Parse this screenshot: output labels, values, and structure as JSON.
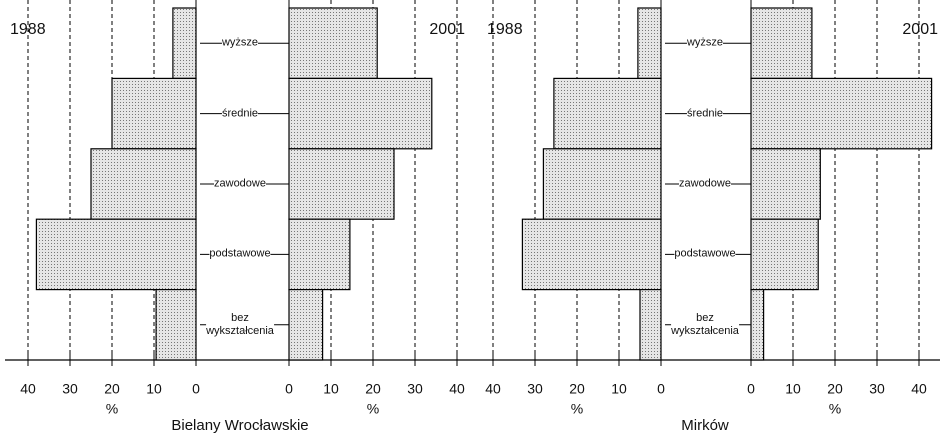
{
  "chart_data": [
    {
      "type": "bar",
      "orientation": "horizontal",
      "title": "Bielany Wrocławskie",
      "categories": [
        "wyższe",
        "średnie",
        "zawodowe",
        "podstawowe",
        "bez\nwykształcenia"
      ],
      "series": [
        {
          "name": "1988",
          "side": "left",
          "color": "#d9d9d9",
          "values": [
            5.5,
            20,
            25,
            38,
            9.5
          ]
        },
        {
          "name": "2001",
          "side": "right",
          "color": "#d9d9d9",
          "values": [
            21,
            34,
            25,
            14.5,
            8
          ]
        }
      ],
      "xlim": [
        0,
        40
      ],
      "xticks": [
        0,
        10,
        20,
        30,
        40
      ],
      "xlabel": "%",
      "grid": true
    },
    {
      "type": "bar",
      "orientation": "horizontal",
      "title": "Mirków",
      "categories": [
        "wyższe",
        "średnie",
        "zawodowe",
        "podstawowe",
        "bez\nwykształcenia"
      ],
      "series": [
        {
          "name": "1988",
          "side": "left",
          "color": "#d9d9d9",
          "values": [
            5.5,
            25.5,
            28,
            33,
            5
          ]
        },
        {
          "name": "2001",
          "side": "right",
          "color": "#d9d9d9",
          "values": [
            14.5,
            43,
            16.5,
            16,
            3
          ]
        }
      ],
      "xlim": [
        0,
        40
      ],
      "xticks": [
        0,
        10,
        20,
        30,
        40
      ],
      "xlabel": "%",
      "grid": true
    }
  ]
}
